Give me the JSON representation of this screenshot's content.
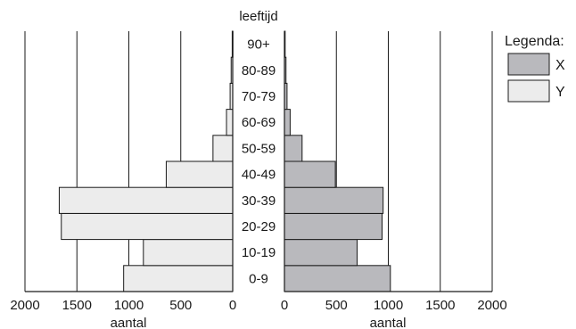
{
  "chart_data": {
    "type": "bar",
    "orientation": "horizontal",
    "layout": "population-pyramid",
    "category_axis_label": "leeftijd",
    "categories": [
      "0-9",
      "10-19",
      "20-29",
      "30-39",
      "40-49",
      "50-59",
      "60-69",
      "70-79",
      "80-89",
      "90+"
    ],
    "series": [
      {
        "name": "Y",
        "side": "left",
        "color": "#ececec",
        "values": [
          1050,
          860,
          1650,
          1670,
          640,
          190,
          60,
          25,
          15,
          5
        ]
      },
      {
        "name": "X",
        "side": "right",
        "color": "#b9b9bd",
        "values": [
          1020,
          700,
          940,
          950,
          490,
          170,
          55,
          25,
          15,
          5
        ]
      }
    ],
    "x_axis": {
      "label": "aantal",
      "range": [
        0,
        2000
      ],
      "ticks": [
        0,
        500,
        1000,
        1500,
        2000
      ]
    },
    "grid": true,
    "legend": {
      "title": "Legenda:",
      "position": "top-right",
      "order": [
        "X",
        "Y"
      ]
    }
  }
}
